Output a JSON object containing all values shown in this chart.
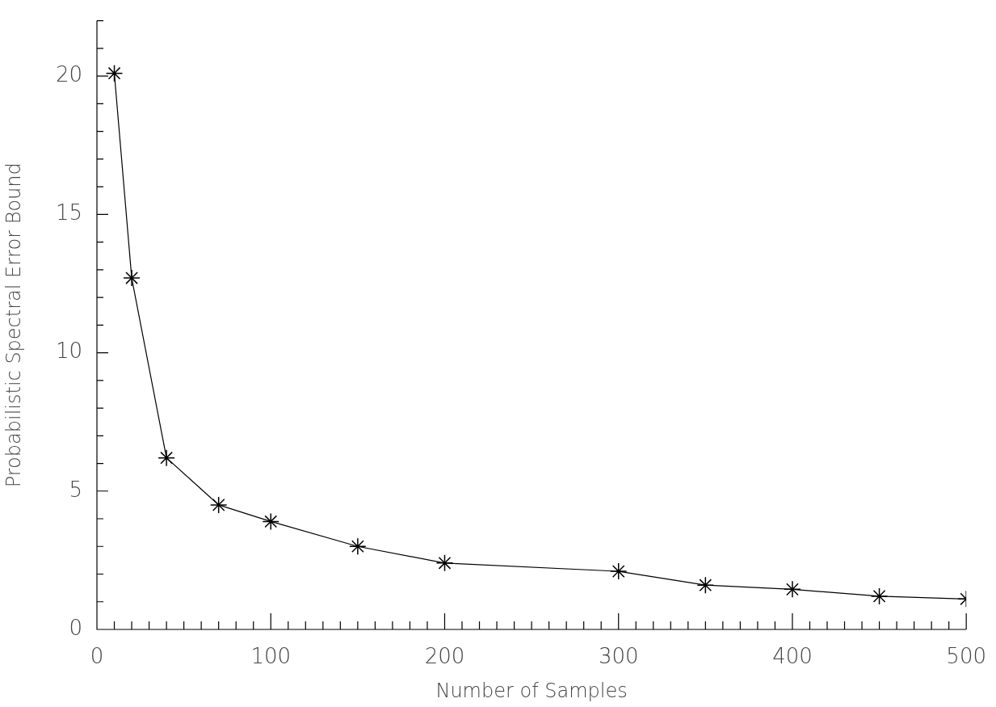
{
  "chart_data": {
    "type": "line",
    "xlabel": "Number of Samples",
    "ylabel": "Probabilistic Spectral Error Bound",
    "x": [
      10,
      20,
      40,
      70,
      100,
      150,
      200,
      300,
      350,
      400,
      450,
      500
    ],
    "series": [
      {
        "color": "#000000",
        "values": [
          20.1,
          12.7,
          6.2,
          4.5,
          3.9,
          3.0,
          2.4,
          2.1,
          1.6,
          1.45,
          1.2,
          1.1
        ]
      }
    ],
    "xlim": [
      0,
      500
    ],
    "xticks": [
      0,
      {
        "value": 10,
        "label": null
      },
      {
        "value": 20,
        "label": null
      },
      {
        "value": 30,
        "label": null
      },
      {
        "value": 40,
        "label": null
      },
      {
        "value": 50,
        "label": null
      },
      {
        "value": 60,
        "label": null
      },
      {
        "value": 70,
        "label": null
      },
      {
        "value": 80,
        "label": null
      },
      {
        "value": 90,
        "label": null
      },
      100,
      {
        "value": 110,
        "label": null
      },
      {
        "value": 120,
        "label": null
      },
      {
        "value": 130,
        "label": null
      },
      {
        "value": 140,
        "label": null
      },
      {
        "value": 150,
        "label": null
      },
      {
        "value": 160,
        "label": null
      },
      {
        "value": 170,
        "label": null
      },
      {
        "value": 180,
        "label": null
      },
      {
        "value": 190,
        "label": null
      },
      200,
      {
        "value": 210,
        "label": null
      },
      {
        "value": 220,
        "label": null
      },
      {
        "value": 230,
        "label": null
      },
      {
        "value": 240,
        "label": null
      },
      {
        "value": 250,
        "label": null
      },
      {
        "value": 260,
        "label": null
      },
      {
        "value": 270,
        "label": null
      },
      {
        "value": 280,
        "label": null
      },
      {
        "value": 290,
        "label": null
      },
      300,
      {
        "value": 310,
        "label": null
      },
      {
        "value": 320,
        "label": null
      },
      {
        "value": 330,
        "label": null
      },
      {
        "value": 340,
        "label": null
      },
      {
        "value": 350,
        "label": null
      },
      {
        "value": 360,
        "label": null
      },
      {
        "value": 370,
        "label": null
      },
      {
        "value": 380,
        "label": null
      },
      {
        "value": 390,
        "label": null
      },
      400,
      {
        "value": 410,
        "label": null
      },
      {
        "value": 420,
        "label": null
      },
      {
        "value": 430,
        "label": null
      },
      {
        "value": 440,
        "label": null
      },
      {
        "value": 450,
        "label": null
      },
      {
        "value": 460,
        "label": null
      },
      {
        "value": 470,
        "label": null
      },
      {
        "value": 480,
        "label": null
      },
      {
        "value": 490,
        "label": null
      },
      500
    ],
    "ylim": [
      0,
      22
    ],
    "yticks": [
      0,
      {
        "value": 1,
        "label": null
      },
      {
        "value": 2,
        "label": null
      },
      {
        "value": 3,
        "label": null
      },
      {
        "value": 4,
        "label": null
      },
      5,
      {
        "value": 6,
        "label": null
      },
      {
        "value": 7,
        "label": null
      },
      {
        "value": 8,
        "label": null
      },
      {
        "value": 9,
        "label": null
      },
      10,
      {
        "value": 11,
        "label": null
      },
      {
        "value": 12,
        "label": null
      },
      {
        "value": 13,
        "label": null
      },
      {
        "value": 14,
        "label": null
      },
      15,
      {
        "value": 16,
        "label": null
      },
      {
        "value": 17,
        "label": null
      },
      {
        "value": 18,
        "label": null
      },
      {
        "value": 19,
        "label": null
      },
      20,
      {
        "value": 21,
        "label": null
      },
      {
        "value": 22,
        "label": null
      }
    ],
    "grid": false,
    "legend": false,
    "marker": "cross",
    "line_style": "solid"
  }
}
